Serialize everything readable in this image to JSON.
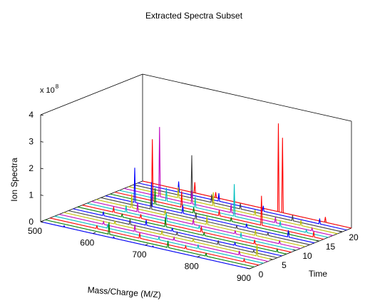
{
  "figure": {
    "background": "#ffffff",
    "axes_color": "#000000"
  },
  "chart_data": {
    "type": "line",
    "subtype": "3d-waterfall",
    "title": "Extracted Spectra Subset",
    "xlabel": "Mass/Charge (M/Z)",
    "ylabel": "Time",
    "zlabel": "Ion Spectra",
    "z_exponent": "x 10",
    "z_exponent_power": "8",
    "xlim": [
      500,
      900
    ],
    "ylim": [
      0,
      22
    ],
    "zlim": [
      0,
      4
    ],
    "x_ticks": [
      "500",
      "600",
      "700",
      "800",
      "900"
    ],
    "y_ticks": [
      "0",
      "5",
      "10",
      "15",
      "20"
    ],
    "z_ticks": [
      "0",
      "1",
      "2",
      "3",
      "4"
    ],
    "x_tick_values": [
      500,
      600,
      700,
      800,
      900
    ],
    "y_tick_values": [
      0,
      5,
      10,
      15,
      20
    ],
    "z_tick_values": [
      0,
      1,
      2,
      3,
      4
    ],
    "grid": false,
    "color_cycle": [
      "#0000ff",
      "#008000",
      "#ff0000",
      "#00bfbf",
      "#bf00bf",
      "#bfbf00",
      "#404040"
    ],
    "series": [
      {
        "time": 0,
        "color": "#0000ff",
        "peaks": [
          [
            545,
            0.05
          ],
          [
            640,
            0.05
          ],
          [
            715,
            0.04
          ]
        ]
      },
      {
        "time": 1,
        "color": "#008000",
        "peaks": [
          [
            622,
            0.45
          ],
          [
            735,
            0.25
          ],
          [
            808,
            0.12
          ]
        ]
      },
      {
        "time": 2,
        "color": "#ff0000",
        "peaks": [
          [
            590,
            0.12
          ],
          [
            672,
            0.2
          ],
          [
            760,
            0.1
          ],
          [
            872,
            0.1
          ]
        ]
      },
      {
        "time": 3,
        "color": "#00bfbf",
        "peaks": [
          [
            602,
            0.15
          ],
          [
            700,
            0.1
          ],
          [
            775,
            0.15
          ]
        ]
      },
      {
        "time": 4,
        "color": "#bf00bf",
        "peaks": [
          [
            585,
            0.1
          ],
          [
            645,
            0.25
          ],
          [
            720,
            0.1
          ],
          [
            845,
            0.15
          ]
        ]
      },
      {
        "time": 5,
        "color": "#bfbf00",
        "peaks": [
          [
            598,
            0.12
          ],
          [
            688,
            0.15
          ],
          [
            748,
            0.12
          ],
          [
            870,
            0.45
          ]
        ]
      },
      {
        "time": 6,
        "color": "#404040",
        "peaks": [
          [
            618,
            0.2
          ],
          [
            708,
            0.1
          ],
          [
            787,
            0.15
          ],
          [
            855,
            0.08
          ]
        ]
      },
      {
        "time": 7,
        "color": "#0000ff",
        "peaks": [
          [
            558,
            0.15
          ],
          [
            640,
            0.2
          ],
          [
            690,
            0.12
          ],
          [
            810,
            0.1
          ]
        ]
      },
      {
        "time": 8,
        "color": "#008000",
        "peaks": [
          [
            585,
            0.12
          ],
          [
            668,
            0.35
          ],
          [
            742,
            0.1
          ],
          [
            882,
            0.1
          ]
        ]
      },
      {
        "time": 9,
        "color": "#ff0000",
        "peaks": [
          [
            560,
            0.2
          ],
          [
            612,
            0.15
          ],
          [
            728,
            0.2
          ],
          [
            830,
            0.15
          ]
        ]
      },
      {
        "time": 10,
        "color": "#00bfbf",
        "peaks": [
          [
            575,
            0.25
          ],
          [
            652,
            0.3
          ],
          [
            715,
            0.1
          ],
          [
            795,
            0.2
          ]
        ]
      },
      {
        "time": 11,
        "color": "#bf00bf",
        "peaks": [
          [
            588,
            0.35
          ],
          [
            695,
            0.2
          ],
          [
            775,
            0.12
          ],
          [
            860,
            0.12
          ]
        ]
      },
      {
        "time": 12,
        "color": "#bfbf00",
        "peaks": [
          [
            568,
            0.5
          ],
          [
            632,
            0.2
          ],
          [
            712,
            0.3
          ],
          [
            805,
            0.2
          ]
        ]
      },
      {
        "time": 13,
        "color": "#404040",
        "peaks": [
          [
            596,
            0.4
          ],
          [
            682,
            0.25
          ],
          [
            760,
            0.1
          ],
          [
            820,
            0.1
          ]
        ]
      },
      {
        "time": 14,
        "color": "#0000ff",
        "peaks": [
          [
            556,
            1.3
          ],
          [
            588,
            0.9
          ],
          [
            648,
            0.3
          ],
          [
            770,
            0.15
          ],
          [
            850,
            0.25
          ]
        ]
      },
      {
        "time": 15,
        "color": "#008000",
        "peaks": [
          [
            586,
            0.6
          ],
          [
            660,
            0.2
          ],
          [
            732,
            0.15
          ],
          [
            842,
            0.1
          ]
        ]
      },
      {
        "time": 16,
        "color": "#ff0000",
        "peaks": [
          [
            572,
            2.3
          ],
          [
            628,
            0.6
          ],
          [
            700,
            0.2
          ],
          [
            781,
            1.1
          ],
          [
            881,
            0.2
          ]
        ]
      },
      {
        "time": 17,
        "color": "#00bfbf",
        "peaks": [
          [
            590,
            0.5
          ],
          [
            645,
            0.4
          ],
          [
            720,
            1.2
          ],
          [
            808,
            0.2
          ],
          [
            858,
            0.1
          ]
        ]
      },
      {
        "time": 18,
        "color": "#bf00bf",
        "peaks": [
          [
            568,
            2.6
          ],
          [
            630,
            0.5
          ],
          [
            705,
            0.3
          ],
          [
            790,
            0.2
          ],
          [
            860,
            0.1
          ]
        ]
      },
      {
        "time": 19,
        "color": "#bfbf00",
        "peaks": [
          [
            595,
            0.4
          ],
          [
            662,
            0.5
          ],
          [
            742,
            0.2
          ],
          [
            830,
            0.2
          ]
        ]
      },
      {
        "time": 20,
        "color": "#404040",
        "peaks": [
          [
            612,
            1.6
          ],
          [
            650,
            0.3
          ],
          [
            705,
            0.2
          ],
          [
            805,
            0.2
          ]
        ]
      },
      {
        "time": 21,
        "color": "#0000ff",
        "peaks": [
          [
            578,
            0.4
          ],
          [
            655,
            0.3
          ],
          [
            740,
            0.2
          ],
          [
            848,
            0.2
          ]
        ]
      },
      {
        "time": 22,
        "color": "#ff0000",
        "peaks": [
          [
            600,
            0.4
          ],
          [
            640,
            0.2
          ],
          [
            760,
            3.3
          ],
          [
            768,
            2.8
          ],
          [
            850,
            0.2
          ]
        ]
      }
    ]
  }
}
